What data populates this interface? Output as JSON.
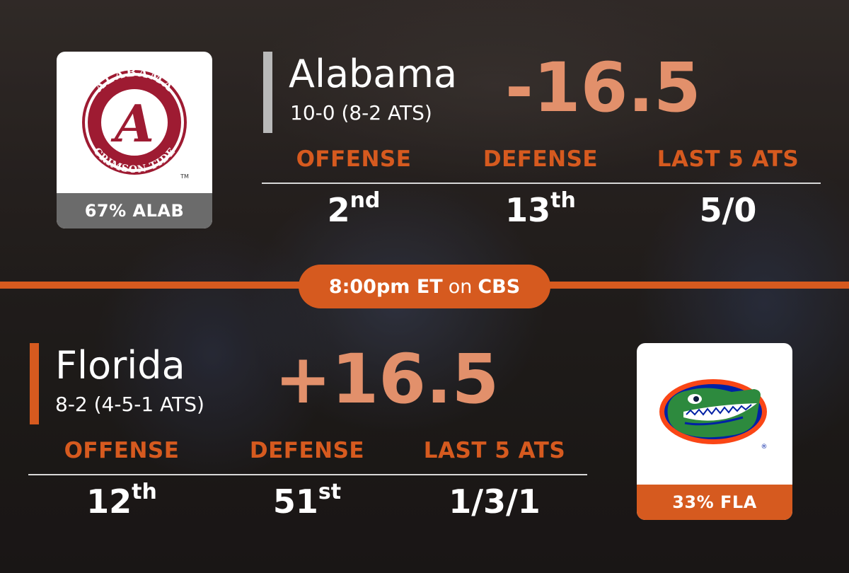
{
  "colors": {
    "accent": "#d65a1f",
    "spread_text": "#e2906b",
    "alabama_bar": "#b9b9b9",
    "alabama_crimson": "#9e1b32",
    "florida_blue": "#0021a5",
    "florida_orange": "#fa4616"
  },
  "game": {
    "time": "8:00pm ET",
    "connector": "on",
    "network": "CBS"
  },
  "alabama": {
    "name": "Alabama",
    "record": "10-0 (8-2 ATS)",
    "spread": "-16.5",
    "win_pct_label": "67% ALAB",
    "logo": {
      "icon": "alabama-script-a-logo",
      "ring_text_top": "ALABAMA",
      "ring_text_bottom": "CRIMSON TIDE",
      "letter": "A",
      "tm": "TM"
    },
    "stats": {
      "offense_label": "OFFENSE",
      "offense_rank": "2",
      "offense_suffix": "nd",
      "defense_label": "DEFENSE",
      "defense_rank": "13",
      "defense_suffix": "th",
      "ats_label": "LAST 5 ATS",
      "ats_value": "5/0"
    }
  },
  "florida": {
    "name": "Florida",
    "record": "8-2 (4-5-1 ATS)",
    "spread": "+16.5",
    "win_pct_label": "33% FLA",
    "logo": {
      "icon": "florida-gator-head-logo",
      "registered": "®"
    },
    "stats": {
      "offense_label": "OFFENSE",
      "offense_rank": "12",
      "offense_suffix": "th",
      "defense_label": "DEFENSE",
      "defense_rank": "51",
      "defense_suffix": "st",
      "ats_label": "LAST 5 ATS",
      "ats_value": "1/3/1"
    }
  }
}
